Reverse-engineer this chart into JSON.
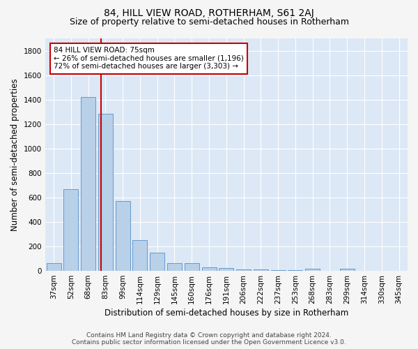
{
  "title": "84, HILL VIEW ROAD, ROTHERHAM, S61 2AJ",
  "subtitle": "Size of property relative to semi-detached houses in Rotherham",
  "xlabel": "Distribution of semi-detached houses by size in Rotherham",
  "ylabel": "Number of semi-detached properties",
  "footer_line1": "Contains HM Land Registry data © Crown copyright and database right 2024.",
  "footer_line2": "Contains public sector information licensed under the Open Government Licence v3.0.",
  "bar_labels": [
    "37sqm",
    "52sqm",
    "68sqm",
    "83sqm",
    "99sqm",
    "114sqm",
    "129sqm",
    "145sqm",
    "160sqm",
    "176sqm",
    "191sqm",
    "206sqm",
    "222sqm",
    "237sqm",
    "253sqm",
    "268sqm",
    "283sqm",
    "299sqm",
    "314sqm",
    "330sqm",
    "345sqm"
  ],
  "bar_values": [
    65,
    670,
    1420,
    1285,
    570,
    250,
    148,
    65,
    62,
    30,
    22,
    14,
    10,
    7,
    5,
    20,
    2,
    18,
    0,
    0,
    0
  ],
  "bar_color": "#b8d0e8",
  "bar_edge_color": "#6699cc",
  "property_line_x": 2.75,
  "property_sqm": 75,
  "property_label": "84 HILL VIEW ROAD: 75sqm",
  "pct_smaller": 26,
  "pct_smaller_count": "1,196",
  "pct_larger": 72,
  "pct_larger_count": "3,303",
  "annotation_box_color": "#cc0000",
  "ylim": [
    0,
    1900
  ],
  "yticks": [
    0,
    200,
    400,
    600,
    800,
    1000,
    1200,
    1400,
    1600,
    1800
  ],
  "background_color": "#dce8f5",
  "grid_color": "#ffffff",
  "fig_bg_color": "#f5f5f5",
  "title_fontsize": 10,
  "subtitle_fontsize": 9,
  "axis_label_fontsize": 8.5,
  "tick_fontsize": 7.5,
  "annotation_fontsize": 7.5,
  "footer_fontsize": 6.5
}
